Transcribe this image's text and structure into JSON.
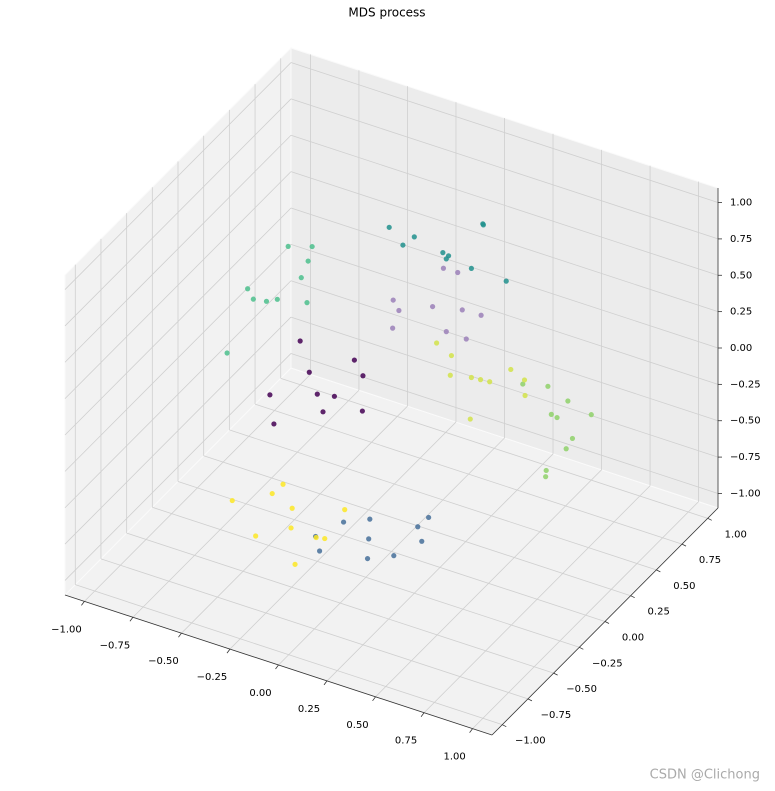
{
  "chart_data": {
    "type": "scatter3d",
    "title": "MDS process",
    "xlim": [
      -1.1,
      1.1
    ],
    "ylim": [
      -1.1,
      1.1
    ],
    "zlim": [
      -1.1,
      1.1
    ],
    "xticks": [
      {
        "value": -1,
        "label": "−1.00"
      },
      {
        "value": -0.75,
        "label": "−0.75"
      },
      {
        "value": -0.5,
        "label": "−0.50"
      },
      {
        "value": -0.25,
        "label": "−0.25"
      },
      {
        "value": 0,
        "label": "0.00"
      },
      0.25,
      {
        "value": 0.5,
        "label": "0.50"
      },
      0.75,
      {
        "value": 1,
        "label": "1.00"
      }
    ],
    "yticks": [
      {
        "value": -1,
        "label": "−1.00"
      },
      {
        "value": -0.75,
        "label": "−0.75"
      },
      {
        "value": -0.5,
        "label": "−0.50"
      },
      {
        "value": -0.25,
        "label": "−0.25"
      },
      {
        "value": 0,
        "label": "0.00"
      },
      0.25,
      {
        "value": 0.5,
        "label": "0.50"
      },
      0.75,
      {
        "value": 1,
        "label": "1.00"
      }
    ],
    "zticks": [
      {
        "value": -1,
        "label": "−1.00"
      },
      {
        "value": -0.75,
        "label": "−0.75"
      },
      {
        "value": -0.5,
        "label": "−0.50"
      },
      {
        "value": -0.25,
        "label": "−0.25"
      },
      {
        "value": 0,
        "label": "0.00"
      },
      0.25,
      {
        "value": 0.5,
        "label": "0.50"
      },
      0.75,
      {
        "value": 1,
        "label": "1.00"
      }
    ],
    "grid": true,
    "series": [
      {
        "color": "#440154",
        "x": [
          -0.45,
          -0.3,
          -0.55,
          -0.2,
          -0.5,
          -0.35,
          -0.6,
          -0.25,
          -0.4,
          -0.15
        ],
        "y": [
          0.05,
          -0.1,
          0.15,
          0.1,
          -0.2,
          0.3,
          -0.05,
          -0.25,
          0.2,
          0.0
        ],
        "z": [
          -0.1,
          -0.2,
          0.0,
          -0.05,
          -0.3,
          -0.15,
          -0.25,
          0.05,
          -0.35,
          -0.2
        ]
      },
      {
        "color": "#21908d",
        "x": [
          0.0,
          0.2,
          -0.2,
          0.1,
          -0.1,
          0.3,
          0.05,
          -0.25,
          0.15,
          -0.05
        ],
        "y": [
          0.5,
          0.4,
          0.6,
          0.7,
          0.3,
          0.55,
          0.8,
          0.45,
          0.25,
          0.65
        ],
        "z": [
          0.6,
          0.65,
          0.55,
          0.7,
          0.75,
          0.5,
          0.6,
          0.7,
          0.8,
          0.45
        ]
      },
      {
        "color": "#4cc08d",
        "x": [
          -0.8,
          -0.9,
          -0.7,
          -0.85,
          -0.75,
          -0.95,
          -0.65,
          -0.8,
          -0.9,
          -0.7
        ],
        "y": [
          0.4,
          0.3,
          0.5,
          0.6,
          0.2,
          0.45,
          0.35,
          0.7,
          0.1,
          0.55
        ],
        "z": [
          0.0,
          0.1,
          -0.05,
          0.2,
          0.15,
          -0.1,
          0.25,
          0.05,
          -0.2,
          0.3
        ]
      },
      {
        "color": "#8fd16a",
        "x": [
          0.8,
          0.9,
          0.7,
          0.85,
          0.95,
          0.75,
          0.9,
          0.65,
          0.8,
          0.85
        ],
        "y": [
          0.1,
          0.0,
          0.2,
          -0.1,
          0.15,
          0.3,
          -0.2,
          0.05,
          0.25,
          -0.05
        ],
        "z": [
          0.1,
          0.0,
          0.2,
          -0.1,
          0.15,
          0.05,
          -0.05,
          0.3,
          -0.15,
          0.25
        ]
      },
      {
        "color": "#d2e34a",
        "x": [
          0.3,
          0.4,
          0.2,
          0.5,
          0.1,
          0.35,
          0.25,
          0.45,
          0.15,
          0.3
        ],
        "y": [
          0.3,
          0.2,
          0.4,
          0.35,
          0.25,
          0.5,
          0.1,
          0.45,
          0.3,
          0.2
        ],
        "z": [
          0.0,
          0.1,
          -0.1,
          0.05,
          0.2,
          -0.05,
          0.15,
          -0.15,
          0.1,
          -0.2
        ]
      },
      {
        "color": "#9b80b8",
        "x": [
          0.0,
          0.1,
          -0.15,
          0.2,
          -0.05,
          0.15,
          -0.2,
          0.05,
          0.25,
          -0.1
        ],
        "y": [
          0.4,
          0.5,
          0.3,
          0.35,
          0.6,
          0.25,
          0.45,
          0.55,
          0.4,
          0.2
        ],
        "z": [
          0.3,
          0.25,
          0.35,
          0.2,
          0.4,
          0.3,
          0.15,
          0.45,
          0.35,
          0.25
        ]
      },
      {
        "color": "#46709a",
        "x": [
          0.2,
          0.4,
          0.0,
          0.3,
          0.1,
          0.5,
          -0.1,
          0.35,
          0.15,
          0.25
        ],
        "y": [
          -0.6,
          -0.5,
          -0.7,
          -0.8,
          -0.4,
          -0.65,
          -0.55,
          -0.3,
          -0.75,
          -0.45
        ],
        "z": [
          -0.5,
          -0.4,
          -0.6,
          -0.45,
          -0.55,
          -0.35,
          -0.65,
          -0.5,
          -0.3,
          -0.7
        ]
      },
      {
        "color": "#fde725",
        "x": [
          -0.2,
          -0.35,
          -0.1,
          -0.3,
          0.0,
          -0.45,
          -0.15,
          -0.25,
          0.05,
          -0.4
        ],
        "y": [
          -0.6,
          -0.5,
          -0.75,
          -0.4,
          -0.65,
          -0.7,
          -0.45,
          -0.85,
          -0.55,
          -0.3
        ],
        "z": [
          -0.6,
          -0.5,
          -0.7,
          -0.65,
          -0.55,
          -0.45,
          -0.75,
          -0.5,
          -0.4,
          -0.6
        ]
      }
    ]
  },
  "watermark": "CSDN @Clichong"
}
